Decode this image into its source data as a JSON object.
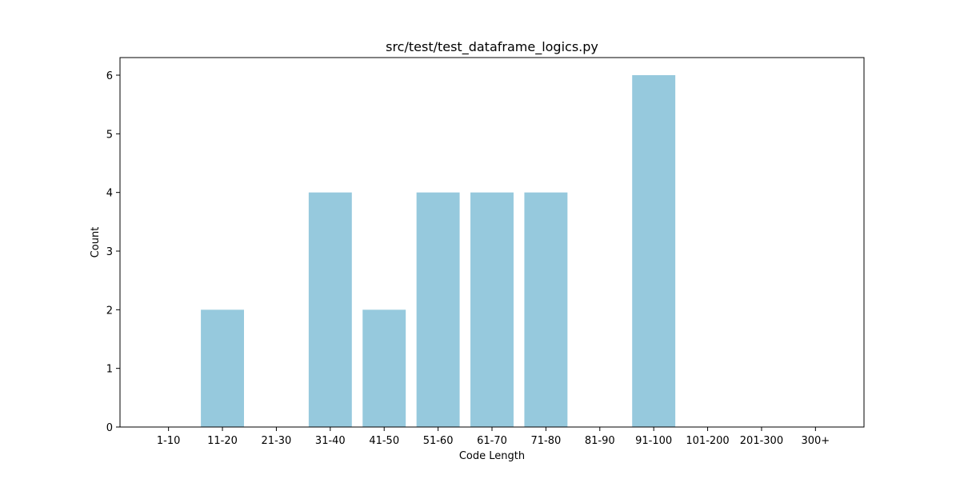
{
  "chart_data": {
    "type": "bar",
    "title": "src/test/test_dataframe_logics.py",
    "xlabel": "Code Length",
    "ylabel": "Count",
    "categories": [
      "1-10",
      "11-20",
      "21-30",
      "31-40",
      "41-50",
      "51-60",
      "61-70",
      "71-80",
      "81-90",
      "91-100",
      "101-200",
      "201-300",
      "300+"
    ],
    "values": [
      0,
      2,
      0,
      4,
      2,
      4,
      4,
      4,
      0,
      6,
      0,
      0,
      0
    ],
    "ylim": [
      0,
      6.3
    ],
    "yticks": [
      0,
      1,
      2,
      3,
      4,
      5,
      6
    ],
    "grid": false,
    "legend": "none",
    "bar_color": "#96c9dd"
  }
}
